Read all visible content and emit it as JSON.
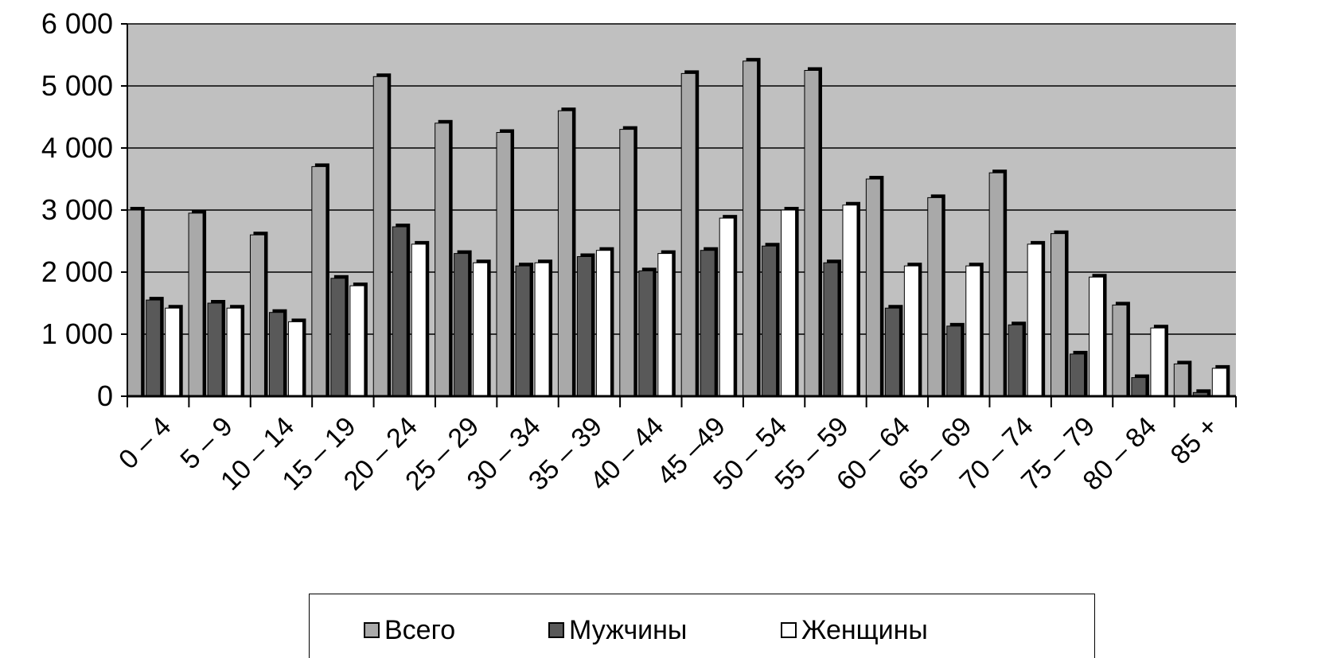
{
  "chart_data": {
    "type": "bar",
    "categories": [
      "0 – 4",
      "5 – 9",
      "10 – 14",
      "15 – 19",
      "20 – 24",
      "25 – 29",
      "30 – 34",
      "35 – 39",
      "40 – 44",
      "45 –49",
      "50 – 54",
      "55 – 59",
      "60 – 64",
      "65 – 69",
      "70 – 74",
      "75 – 79",
      "80 – 84",
      "85 +"
    ],
    "series": [
      {
        "name": "Всего",
        "color": "#a9a9a9",
        "values": [
          3000,
          2950,
          2600,
          3700,
          5150,
          4400,
          4250,
          4600,
          4300,
          5200,
          5400,
          5250,
          3500,
          3200,
          3600,
          2620,
          1470,
          520
        ]
      },
      {
        "name": "Мужчины",
        "color": "#595959",
        "values": [
          1550,
          1500,
          1350,
          1900,
          2730,
          2300,
          2100,
          2250,
          2020,
          2350,
          2420,
          2150,
          1420,
          1130,
          1150,
          680,
          300,
          60
        ]
      },
      {
        "name": "Женщины",
        "color": "#ffffff",
        "values": [
          1420,
          1420,
          1200,
          1780,
          2450,
          2150,
          2150,
          2350,
          2300,
          2870,
          3000,
          3080,
          2100,
          2100,
          2450,
          1920,
          1100,
          450
        ]
      }
    ],
    "ylim": [
      0,
      6000
    ],
    "yticks": [
      "0",
      "1 000",
      "2 000",
      "3 000",
      "4 000",
      "5 000",
      "6 000"
    ],
    "grid": true,
    "legend_position": "bottom",
    "title": "",
    "xlabel": "",
    "ylabel": ""
  }
}
